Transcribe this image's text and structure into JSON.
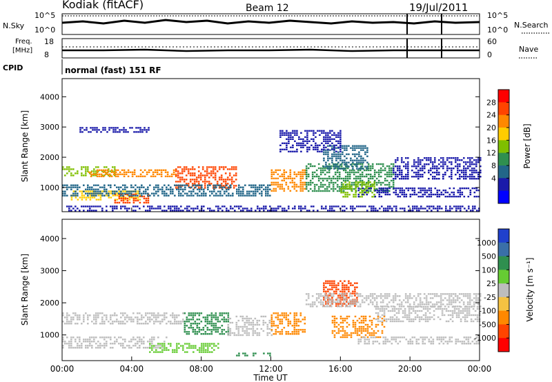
{
  "header": {
    "station": "Kodiak (fitACF)",
    "beam": "Beam 12",
    "date": "19/Jul/2011"
  },
  "panels": {
    "nsky": {
      "left_label": "N.Sky",
      "right_label": "N.Search",
      "ticks": [
        "10^5",
        "10^0"
      ]
    },
    "freq": {
      "left_label_1": "Freq.",
      "left_label_2": "[MHz]",
      "right_label": "Nave",
      "left_ticks": [
        "18",
        "8"
      ],
      "right_ticks": [
        "60",
        "0"
      ]
    },
    "cpid": {
      "label": "CPID",
      "text": "normal (fast) 151 RF"
    }
  },
  "chart_data": [
    {
      "type": "heatmap",
      "name": "power",
      "ylabel": "Slant Range [km]",
      "xlabel": "",
      "yticks": [
        "1000",
        "2000",
        "3000",
        "4000"
      ],
      "ylim": [
        200,
        4600
      ],
      "xlim": [
        0,
        24
      ],
      "colorbar": {
        "label": "Power [dB]",
        "ticks": [
          "28",
          "24",
          "20",
          "16",
          "12",
          "8",
          "4"
        ],
        "colors": [
          "#ff0000",
          "#ff4400",
          "#ff8800",
          "#ffcc00",
          "#7fbf00",
          "#2f8f4f",
          "#226688",
          "#1a1aaa",
          "#0000ff"
        ]
      },
      "bands": [
        {
          "t": [
            0.0,
            3.0
          ],
          "r": [
            1400,
            1700
          ],
          "level": 4
        },
        {
          "t": [
            1.5,
            6.5
          ],
          "r": [
            1350,
            1600
          ],
          "level": 2
        },
        {
          "t": [
            6.5,
            10.0
          ],
          "r": [
            1000,
            1700
          ],
          "level": 1
        },
        {
          "t": [
            0.5,
            4.5
          ],
          "r": [
            600,
            900
          ],
          "level": 3
        },
        {
          "t": [
            3.0,
            5.0
          ],
          "r": [
            500,
            800
          ],
          "level": 1
        },
        {
          "t": [
            0.0,
            12.0
          ],
          "r": [
            700,
            1100
          ],
          "level": 6
        },
        {
          "t": [
            12.0,
            14.0
          ],
          "r": [
            900,
            1600
          ],
          "level": 2
        },
        {
          "t": [
            14.0,
            19.0
          ],
          "r": [
            900,
            1800
          ],
          "level": 5
        },
        {
          "t": [
            15.0,
            17.5
          ],
          "r": [
            1600,
            2400
          ],
          "level": 6
        },
        {
          "t": [
            16.0,
            18.0
          ],
          "r": [
            700,
            1200
          ],
          "level": 4
        },
        {
          "t": [
            17.0,
            24.0
          ],
          "r": [
            700,
            1000
          ],
          "level": 7
        },
        {
          "t": [
            1.0,
            5.0
          ],
          "r": [
            2800,
            3000
          ],
          "level": 7
        },
        {
          "t": [
            12.5,
            16.0
          ],
          "r": [
            2200,
            2900
          ],
          "level": 7
        },
        {
          "t": [
            19.0,
            24.0
          ],
          "r": [
            1300,
            2000
          ],
          "level": 7
        },
        {
          "t": [
            0.0,
            24.0
          ],
          "r": [
            200,
            400
          ],
          "level": 7
        }
      ]
    },
    {
      "type": "heatmap",
      "name": "velocity",
      "ylabel": "Slant Range [km]",
      "xlabel": "Time UT",
      "yticks": [
        "1000",
        "2000",
        "3000",
        "4000"
      ],
      "ylim": [
        200,
        4600
      ],
      "xlim": [
        0,
        24
      ],
      "xticks": [
        "00:00",
        "04:00",
        "08:00",
        "12:00",
        "16:00",
        "20:00",
        "00:00"
      ],
      "colorbar": {
        "label": "Velocity [m s⁻¹]",
        "ticks": [
          "1000",
          "500",
          "100",
          "25",
          "-25",
          "-100",
          "-500",
          "-1000"
        ],
        "colors": [
          "#2040cc",
          "#3a6fa8",
          "#2f8f4f",
          "#66cc33",
          "#bdbdbd",
          "#f5c242",
          "#ff8800",
          "#ff4400",
          "#ff0000"
        ]
      },
      "bands": [
        {
          "t": [
            0.0,
            7.0
          ],
          "r": [
            1350,
            1700
          ],
          "level": 4
        },
        {
          "t": [
            0.0,
            6.0
          ],
          "r": [
            600,
            950
          ],
          "level": 4
        },
        {
          "t": [
            5.0,
            9.0
          ],
          "r": [
            450,
            750
          ],
          "level": 3
        },
        {
          "t": [
            7.0,
            9.5
          ],
          "r": [
            1000,
            1700
          ],
          "level": 2
        },
        {
          "t": [
            9.5,
            12.0
          ],
          "r": [
            1000,
            1600
          ],
          "level": 4
        },
        {
          "t": [
            12.0,
            14.0
          ],
          "r": [
            1000,
            1700
          ],
          "level": 6
        },
        {
          "t": [
            15.0,
            17.0
          ],
          "r": [
            1900,
            2700
          ],
          "level": 7
        },
        {
          "t": [
            15.5,
            18.5
          ],
          "r": [
            900,
            1600
          ],
          "level": 6
        },
        {
          "t": [
            14.0,
            24.0
          ],
          "r": [
            1900,
            2300
          ],
          "level": 4
        },
        {
          "t": [
            18.0,
            24.0
          ],
          "r": [
            1400,
            1900
          ],
          "level": 4
        },
        {
          "t": [
            17.0,
            24.0
          ],
          "r": [
            750,
            950
          ],
          "level": 4
        },
        {
          "t": [
            10.0,
            12.0
          ],
          "r": [
            350,
            450
          ],
          "level": 2
        }
      ]
    }
  ]
}
